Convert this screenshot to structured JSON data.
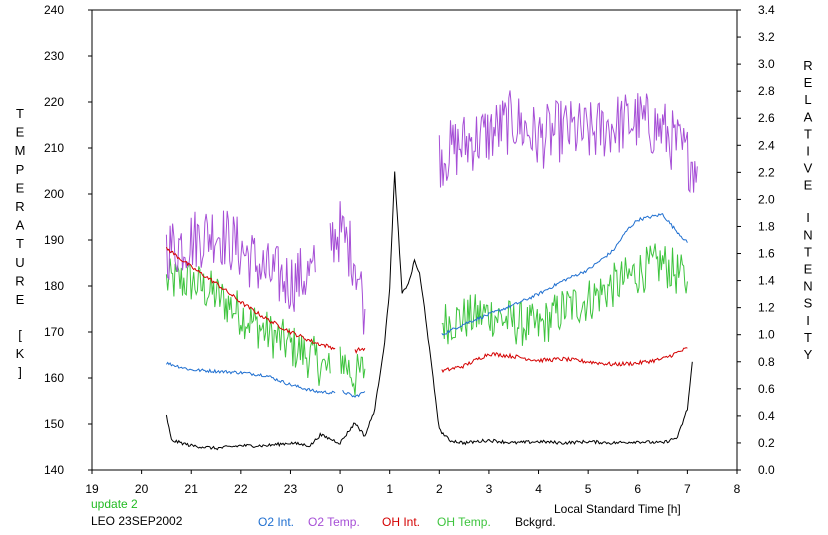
{
  "chart_data": {
    "type": "line",
    "title": "",
    "xlabel": "Local Standard Time [h]",
    "ylabel_left": "TEMPERATURE [K]",
    "ylabel_right": "RELATIVE INTENSITY",
    "x_ticks": [
      "19",
      "20",
      "21",
      "22",
      "23",
      "0",
      "1",
      "2",
      "3",
      "4",
      "5",
      "6",
      "7",
      "8"
    ],
    "xlim": [
      19,
      32
    ],
    "ylim_left": [
      140,
      240
    ],
    "ylim_right": [
      0.0,
      3.4
    ],
    "y_ticks_left": [
      "140",
      "150",
      "160",
      "170",
      "180",
      "190",
      "200",
      "210",
      "220",
      "230",
      "240"
    ],
    "y_ticks_right": [
      "0.0",
      "0.2",
      "0.4",
      "0.6",
      "0.8",
      "1.0",
      "1.2",
      "1.4",
      "1.6",
      "1.8",
      "2.0",
      "2.2",
      "2.4",
      "2.6",
      "2.8",
      "3.0",
      "3.2",
      "3.4"
    ],
    "grid": false,
    "legend_position": "bottom",
    "colors": {
      "o2_int": "#1f6fd0",
      "o2_temp": "#a64fd6",
      "oh_int": "#d40000",
      "oh_temp": "#3ec43e",
      "bckgrd": "#000000",
      "annotation": "#22bb22"
    },
    "series": [
      {
        "name": "O2 Int.",
        "axis": "right",
        "color": "#1f6fd0",
        "segments": [
          [
            [
              20.5,
              0.79
            ],
            [
              21.0,
              0.74
            ],
            [
              21.5,
              0.73
            ],
            [
              22.0,
              0.72
            ],
            [
              22.5,
              0.7
            ],
            [
              23.0,
              0.63
            ],
            [
              23.5,
              0.58
            ],
            [
              23.9,
              0.57
            ]
          ],
          [
            [
              24.05,
              0.58
            ],
            [
              24.3,
              0.54
            ],
            [
              24.5,
              0.58
            ]
          ],
          [
            [
              26.05,
              1.0
            ],
            [
              26.5,
              1.08
            ],
            [
              27.0,
              1.15
            ],
            [
              27.5,
              1.22
            ],
            [
              28.0,
              1.3
            ],
            [
              28.5,
              1.4
            ],
            [
              29.0,
              1.48
            ],
            [
              29.5,
              1.62
            ],
            [
              29.8,
              1.78
            ],
            [
              30.0,
              1.85
            ],
            [
              30.5,
              1.89
            ],
            [
              30.7,
              1.8
            ],
            [
              31.0,
              1.68
            ]
          ]
        ]
      },
      {
        "name": "O2 Temp.",
        "axis": "left",
        "color": "#a64fd6",
        "segments": [
          [
            [
              20.5,
              188
            ],
            [
              21.0,
              190
            ],
            [
              21.5,
              192
            ],
            [
              22.0,
              188
            ],
            [
              22.5,
              183
            ],
            [
              23.0,
              181
            ],
            [
              23.5,
              183
            ]
          ],
          [
            [
              23.8,
              190
            ],
            [
              24.0,
              192
            ],
            [
              24.3,
              186
            ],
            [
              24.5,
              175
            ]
          ],
          [
            [
              26.0,
              208
            ],
            [
              26.5,
              211
            ],
            [
              27.0,
              213
            ],
            [
              27.5,
              216
            ],
            [
              28.0,
              212
            ],
            [
              28.5,
              214
            ],
            [
              29.0,
              213
            ],
            [
              29.5,
              215
            ],
            [
              30.0,
              216
            ],
            [
              30.5,
              214
            ],
            [
              31.0,
              208
            ],
            [
              31.2,
              206
            ]
          ]
        ]
      },
      {
        "name": "OH Int.",
        "axis": "right",
        "color": "#d40000",
        "segments": [
          [
            [
              20.5,
              1.64
            ],
            [
              21.0,
              1.5
            ],
            [
              21.5,
              1.38
            ],
            [
              22.0,
              1.24
            ],
            [
              22.5,
              1.12
            ],
            [
              23.0,
              1.02
            ],
            [
              23.5,
              0.94
            ],
            [
              23.9,
              0.9
            ]
          ],
          [
            [
              24.3,
              0.88
            ],
            [
              24.5,
              0.9
            ]
          ],
          [
            [
              26.05,
              0.73
            ],
            [
              26.5,
              0.77
            ],
            [
              27.0,
              0.86
            ],
            [
              27.5,
              0.84
            ],
            [
              28.0,
              0.81
            ],
            [
              28.5,
              0.82
            ],
            [
              29.0,
              0.8
            ],
            [
              29.5,
              0.78
            ],
            [
              30.0,
              0.79
            ],
            [
              30.5,
              0.82
            ],
            [
              31.0,
              0.9
            ]
          ]
        ]
      },
      {
        "name": "OH Temp.",
        "axis": "left",
        "color": "#3ec43e",
        "segments": [
          [
            [
              20.5,
              181
            ],
            [
              21.0,
              181
            ],
            [
              21.5,
              178
            ],
            [
              22.0,
              174
            ],
            [
              22.5,
              170
            ],
            [
              23.0,
              167
            ],
            [
              23.5,
              164
            ],
            [
              23.8,
              161
            ]
          ],
          [
            [
              24.0,
              165
            ],
            [
              24.3,
              160
            ],
            [
              24.5,
              162
            ]
          ],
          [
            [
              26.05,
              172
            ],
            [
              26.5,
              173
            ],
            [
              27.0,
              174
            ],
            [
              27.5,
              172
            ],
            [
              28.0,
              171
            ],
            [
              28.5,
              175
            ],
            [
              29.0,
              177
            ],
            [
              29.5,
              180
            ],
            [
              30.0,
              183
            ],
            [
              30.5,
              185
            ],
            [
              31.0,
              181
            ]
          ]
        ]
      },
      {
        "name": "Bckgrd.",
        "axis": "right",
        "color": "#000000",
        "segments": [
          [
            [
              20.5,
              0.4
            ],
            [
              20.6,
              0.22
            ],
            [
              21.0,
              0.18
            ],
            [
              21.5,
              0.16
            ],
            [
              22.0,
              0.18
            ],
            [
              22.5,
              0.18
            ],
            [
              23.0,
              0.2
            ],
            [
              23.4,
              0.18
            ],
            [
              23.6,
              0.26
            ],
            [
              24.0,
              0.2
            ],
            [
              24.3,
              0.35
            ],
            [
              24.5,
              0.25
            ],
            [
              24.7,
              0.45
            ],
            [
              24.9,
              0.95
            ],
            [
              25.0,
              1.35
            ],
            [
              25.1,
              2.2
            ],
            [
              25.25,
              1.3
            ],
            [
              25.4,
              1.4
            ],
            [
              25.5,
              1.55
            ],
            [
              25.6,
              1.45
            ],
            [
              25.7,
              1.2
            ],
            [
              25.8,
              0.9
            ],
            [
              25.9,
              0.6
            ],
            [
              26.0,
              0.3
            ],
            [
              26.2,
              0.22
            ],
            [
              26.5,
              0.2
            ],
            [
              27.0,
              0.22
            ],
            [
              27.5,
              0.2
            ],
            [
              28.0,
              0.21
            ],
            [
              28.5,
              0.2
            ],
            [
              29.0,
              0.21
            ],
            [
              29.5,
              0.2
            ],
            [
              30.0,
              0.21
            ],
            [
              30.5,
              0.2
            ],
            [
              30.8,
              0.24
            ],
            [
              31.0,
              0.45
            ],
            [
              31.1,
              0.8
            ]
          ]
        ]
      }
    ],
    "annotations": [
      "update 2",
      "LEO 23SEP2002"
    ]
  },
  "legend": {
    "items": [
      {
        "label": "O2 Int.",
        "color": "#1f6fd0"
      },
      {
        "label": "O2 Temp.",
        "color": "#a64fd6"
      },
      {
        "label": "OH Int.",
        "color": "#d40000"
      },
      {
        "label": "OH Temp.",
        "color": "#3ec43e"
      },
      {
        "label": "Bckgrd.",
        "color": "#000000"
      }
    ]
  }
}
